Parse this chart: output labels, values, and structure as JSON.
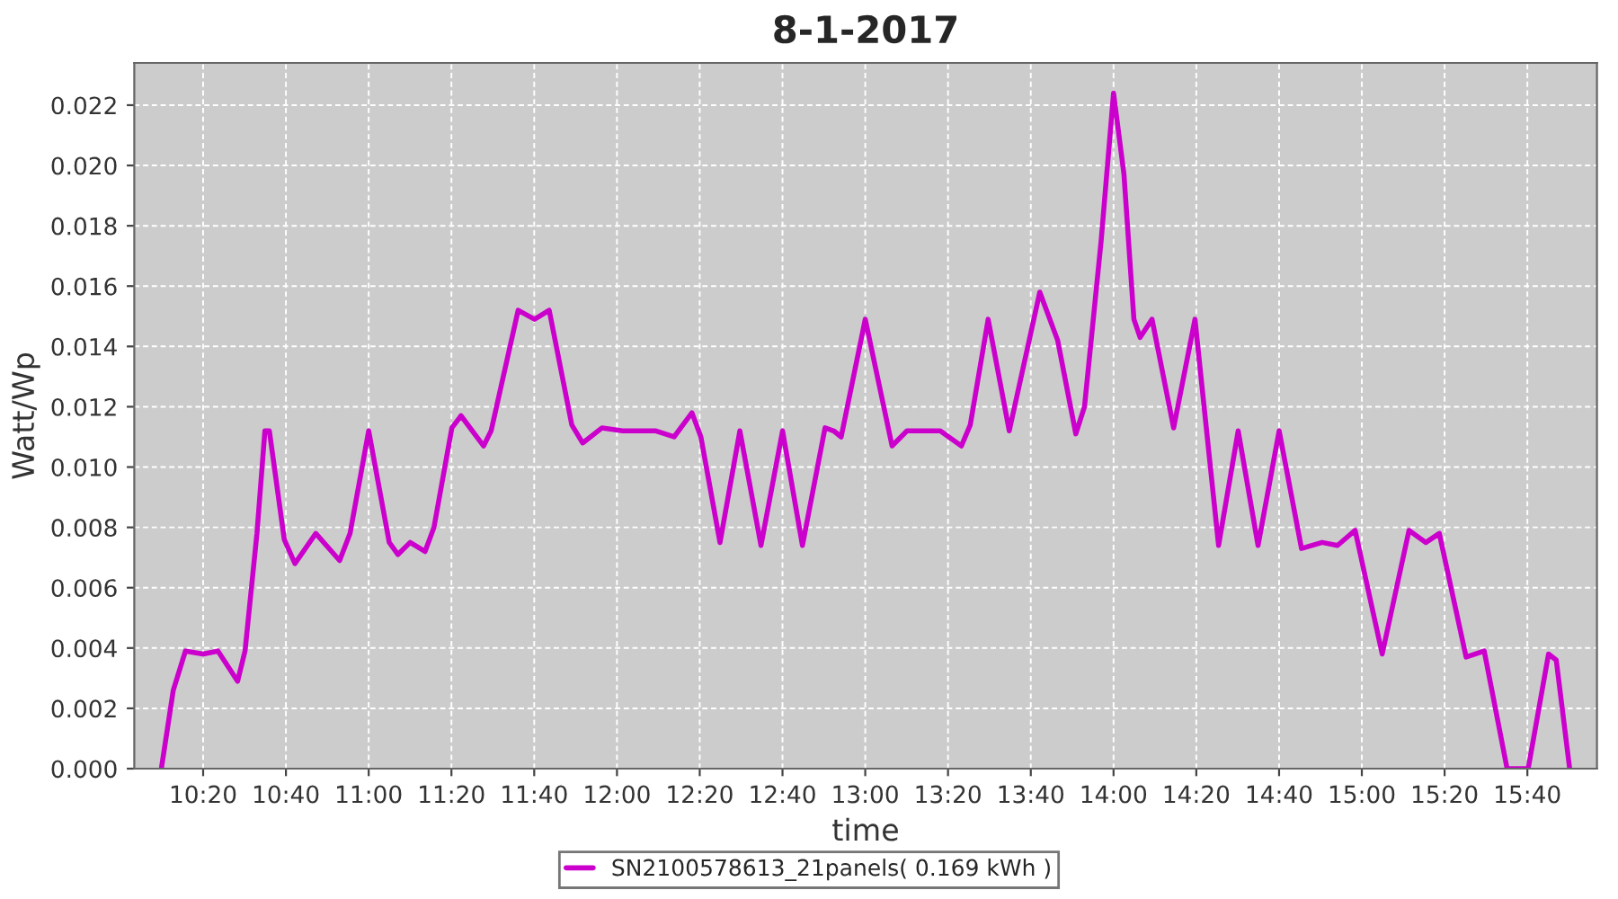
{
  "chart_data": {
    "type": "line",
    "title": "8-1-2017",
    "xlabel": "time",
    "ylabel": "Watt/Wp",
    "xlim": [
      10.056,
      15.947
    ],
    "ylim": [
      0,
      0.0234
    ],
    "xticks": [
      {
        "value": 10.3333,
        "label": "10:20"
      },
      {
        "value": 10.6667,
        "label": "10:40"
      },
      {
        "value": 11.0,
        "label": "11:00"
      },
      {
        "value": 11.3333,
        "label": "11:20"
      },
      {
        "value": 11.6667,
        "label": "11:40"
      },
      {
        "value": 12.0,
        "label": "12:00"
      },
      {
        "value": 12.3333,
        "label": "12:20"
      },
      {
        "value": 12.6667,
        "label": "12:40"
      },
      {
        "value": 13.0,
        "label": "13:00"
      },
      {
        "value": 13.3333,
        "label": "13:20"
      },
      {
        "value": 13.6667,
        "label": "13:40"
      },
      {
        "value": 14.0,
        "label": "14:00"
      },
      {
        "value": 14.3333,
        "label": "14:20"
      },
      {
        "value": 14.6667,
        "label": "14:40"
      },
      {
        "value": 15.0,
        "label": "15:00"
      },
      {
        "value": 15.3333,
        "label": "15:20"
      },
      {
        "value": 15.6667,
        "label": "15:40"
      }
    ],
    "yticks": [
      {
        "value": 0,
        "label": "0.000"
      },
      {
        "value": 0.002,
        "label": "0.002"
      },
      {
        "value": 0.004,
        "label": "0.004"
      },
      {
        "value": 0.006,
        "label": "0.006"
      },
      {
        "value": 0.008,
        "label": "0.008"
      },
      {
        "value": 0.01,
        "label": "0.010"
      },
      {
        "value": 0.012,
        "label": "0.012"
      },
      {
        "value": 0.014,
        "label": "0.014"
      },
      {
        "value": 0.016,
        "label": "0.016"
      },
      {
        "value": 0.018,
        "label": "0.018"
      },
      {
        "value": 0.02,
        "label": "0.020"
      },
      {
        "value": 0.022,
        "label": "0.022"
      }
    ],
    "grid": true,
    "legend": "bottom",
    "marker": "none",
    "line_style": "solid",
    "series": [
      {
        "name": "SN2100578613_21panels( 0.169 kWh )",
        "color": "#cc00cc",
        "x": [
          10.165,
          10.213,
          10.262,
          10.333,
          10.393,
          10.472,
          10.502,
          10.55,
          10.582,
          10.6,
          10.66,
          10.703,
          10.787,
          10.883,
          10.925,
          11.0,
          11.083,
          11.118,
          11.167,
          11.227,
          11.263,
          11.335,
          11.372,
          11.463,
          11.493,
          11.602,
          11.668,
          11.727,
          11.818,
          11.862,
          11.94,
          12.023,
          12.157,
          12.23,
          12.302,
          12.338,
          12.415,
          12.495,
          12.58,
          12.667,
          12.747,
          12.838,
          12.873,
          12.903,
          13.0,
          13.108,
          13.168,
          13.23,
          13.302,
          13.387,
          13.423,
          13.495,
          13.58,
          13.703,
          13.775,
          13.848,
          13.883,
          13.95,
          14.0,
          14.042,
          14.082,
          14.107,
          14.155,
          14.242,
          14.328,
          14.423,
          14.502,
          14.582,
          14.667,
          14.757,
          14.84,
          14.902,
          14.973,
          15.082,
          15.19,
          15.258,
          15.312,
          15.42,
          15.493,
          15.585,
          15.67,
          15.752,
          15.783,
          15.837
        ],
        "values": [
          0,
          0.0026,
          0.0039,
          0.0038,
          0.0039,
          0.0029,
          0.0039,
          0.0078,
          0.0112,
          0.0112,
          0.0076,
          0.0068,
          0.0078,
          0.0069,
          0.0078,
          0.0112,
          0.0075,
          0.0071,
          0.0075,
          0.0072,
          0.008,
          0.0113,
          0.0117,
          0.0107,
          0.0112,
          0.0152,
          0.0149,
          0.0152,
          0.0114,
          0.0108,
          0.0113,
          0.0112,
          0.0112,
          0.011,
          0.0118,
          0.011,
          0.0075,
          0.0112,
          0.0074,
          0.0112,
          0.0074,
          0.0113,
          0.0112,
          0.011,
          0.0149,
          0.0107,
          0.0112,
          0.0112,
          0.0112,
          0.0107,
          0.0114,
          0.0149,
          0.0112,
          0.0158,
          0.0142,
          0.0111,
          0.012,
          0.0175,
          0.0224,
          0.0197,
          0.0149,
          0.0143,
          0.0149,
          0.0113,
          0.0149,
          0.0074,
          0.0112,
          0.0074,
          0.0112,
          0.0073,
          0.0075,
          0.0074,
          0.0079,
          0.0038,
          0.0079,
          0.0075,
          0.0078,
          0.0037,
          0.0039,
          0,
          0,
          0.0038,
          0.0036,
          0
        ]
      }
    ]
  }
}
